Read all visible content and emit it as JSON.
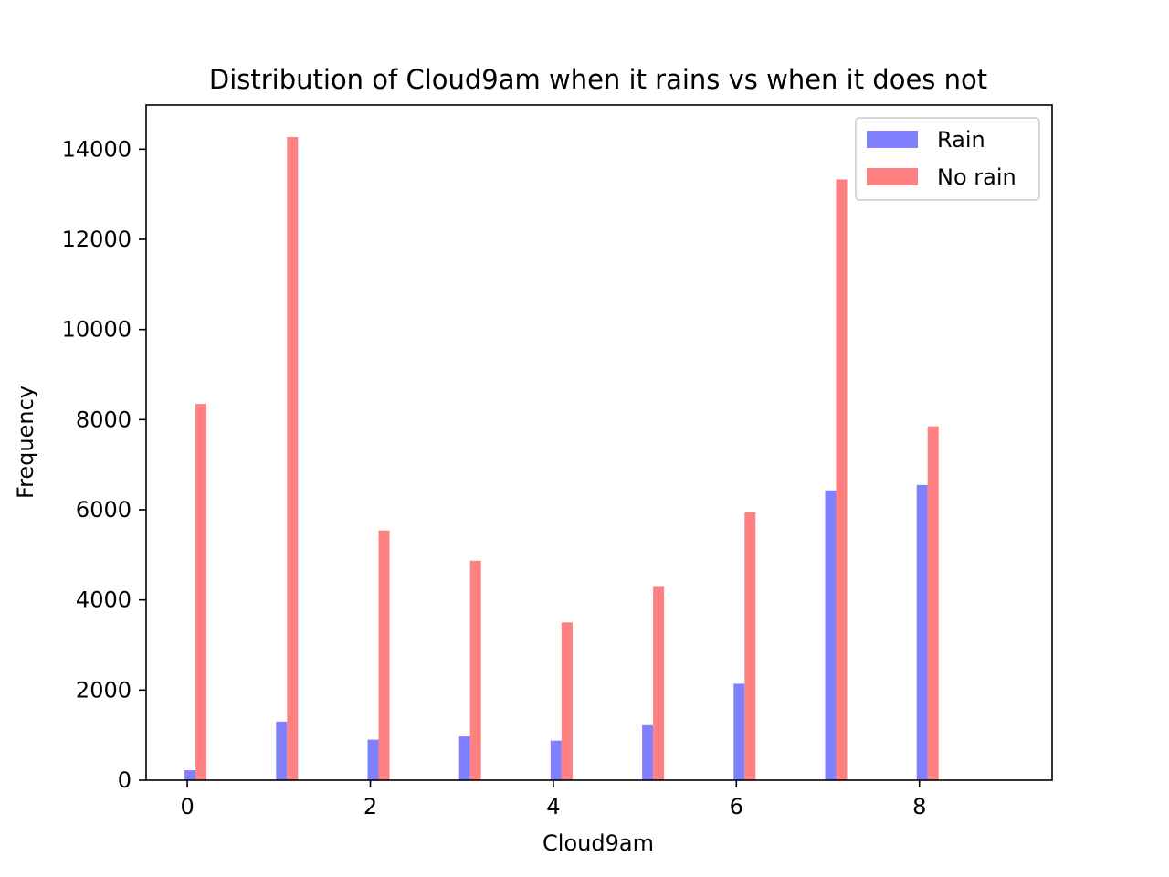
{
  "chart_data": {
    "type": "bar",
    "title": "Distribution of Cloud9am when it rains vs when it does not",
    "xlabel": "Cloud9am",
    "ylabel": "Frequency",
    "xlim": [
      -0.45,
      9.45
    ],
    "ylim": [
      0,
      14980
    ],
    "xticks": [
      0,
      2,
      4,
      6,
      8
    ],
    "yticks": [
      0,
      2000,
      4000,
      6000,
      8000,
      10000,
      12000,
      14000
    ],
    "grid": false,
    "legend_position": "top-right",
    "series": [
      {
        "name": "Rain",
        "color": "#8080ff",
        "bars": [
          {
            "x": 0,
            "value": 220
          },
          {
            "x": 1,
            "value": 1300
          },
          {
            "x": 2,
            "value": 900
          },
          {
            "x": 3,
            "value": 970
          },
          {
            "x": 4,
            "value": 880
          },
          {
            "x": 5,
            "value": 1220
          },
          {
            "x": 6,
            "value": 2140
          },
          {
            "x": 7,
            "value": 6430
          },
          {
            "x": 8,
            "value": 6550
          }
        ]
      },
      {
        "name": "No rain",
        "color": "#ff8080",
        "bars": [
          {
            "x": 0,
            "value": 8350
          },
          {
            "x": 1,
            "value": 14270
          },
          {
            "x": 2,
            "value": 5540
          },
          {
            "x": 3,
            "value": 4870
          },
          {
            "x": 4,
            "value": 3500
          },
          {
            "x": 5,
            "value": 4290
          },
          {
            "x": 6,
            "value": 5940
          },
          {
            "x": 7,
            "value": 13330
          },
          {
            "x": 8,
            "value": 7850
          }
        ]
      }
    ]
  }
}
